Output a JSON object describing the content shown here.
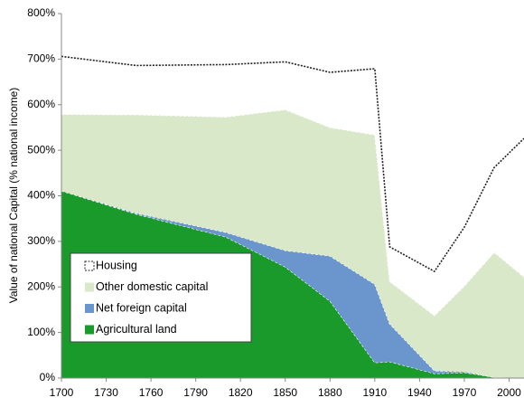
{
  "chart_data": {
    "type": "stacked_area",
    "y_label": "Value of national Capital (% national income)",
    "x": [
      1700,
      1750,
      1810,
      1850,
      1880,
      1910,
      1920,
      1950,
      1970,
      1990,
      2010
    ],
    "series": [
      {
        "name": "Agricultural land",
        "color": "#1a9a2a",
        "values": [
          411,
          360,
          310,
          244,
          169,
          34,
          36,
          10,
          12,
          2,
          0
        ]
      },
      {
        "name": "Net foreign capital",
        "color": "#6b96cd",
        "values": [
          0,
          2,
          10,
          36,
          99,
          172,
          83,
          6,
          2,
          0,
          0
        ]
      },
      {
        "name": "Other domestic capital",
        "color": "#d9e8c8",
        "values": [
          168,
          216,
          253,
          309,
          282,
          328,
          93,
          121,
          188,
          274,
          222
        ]
      },
      {
        "name": "Housing",
        "color": "#ffffff",
        "values": [
          127,
          108,
          115,
          105,
          121,
          145,
          76,
          97,
          129,
          186,
          304
        ]
      }
    ],
    "xlim": [
      1700,
      2010
    ],
    "xticks": [
      1700,
      1730,
      1760,
      1790,
      1820,
      1850,
      1880,
      1910,
      1940,
      1970,
      2000
    ],
    "ylim": [
      0,
      800
    ],
    "yticks": [
      {
        "value": 0,
        "label": "0%"
      },
      {
        "value": 100,
        "label": "100%"
      },
      {
        "value": 200,
        "label": "200%"
      },
      {
        "value": 300,
        "label": "300%"
      },
      {
        "value": 400,
        "label": "400%"
      },
      {
        "value": 500,
        "label": "500%"
      },
      {
        "value": 600,
        "label": "600%"
      },
      {
        "value": 700,
        "label": "700%"
      },
      {
        "value": 800,
        "label": "800%"
      }
    ],
    "legend_order": [
      3,
      2,
      1,
      0
    ]
  }
}
